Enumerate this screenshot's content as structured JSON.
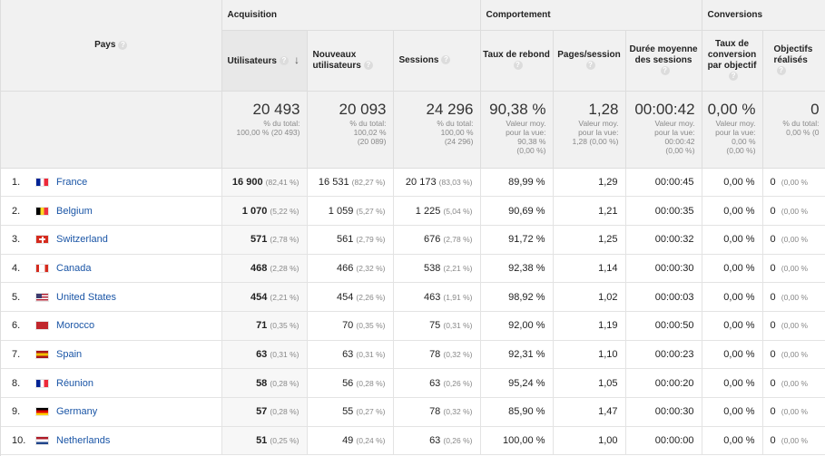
{
  "header": {
    "country_label": "Pays",
    "groups": {
      "acquisition": "Acquisition",
      "behavior": "Comportement",
      "conversions": "Conversions"
    },
    "columns": {
      "users": "Utilisateurs",
      "new_users": "Nouveaux utilisateurs",
      "sessions": "Sessions",
      "bounce": "Taux de rebond",
      "pages": "Pages/session",
      "duration": "Durée moyenne des sessions",
      "conv_rate": "Taux de conversion par objectif",
      "goals": "Objectifs réalisés"
    }
  },
  "totals": {
    "users": {
      "value": "20 493",
      "l1": "% du total:",
      "l2": "100,00 % (20 493)",
      "l3": ""
    },
    "new_users": {
      "value": "20 093",
      "l1": "% du total:",
      "l2": "100,02 %",
      "l3": "(20 089)"
    },
    "sessions": {
      "value": "24 296",
      "l1": "% du total:",
      "l2": "100,00 %",
      "l3": "(24 296)"
    },
    "bounce": {
      "value": "90,38 %",
      "l1": "Valeur moy.",
      "l2": "pour la vue:",
      "l3": "90,38 %",
      "l4": "(0,00 %)"
    },
    "pages": {
      "value": "1,28",
      "l1": "Valeur moy.",
      "l2": "pour la vue:",
      "l3": "1,28 (0,00 %)"
    },
    "duration": {
      "value": "00:00:42",
      "l1": "Valeur moy.",
      "l2": "pour la vue:",
      "l3": "00:00:42",
      "l4": "(0,00 %)"
    },
    "conv_rate": {
      "value": "0,00 %",
      "l1": "Valeur moy.",
      "l2": "pour la vue:",
      "l3": "0,00 %",
      "l4": "(0,00 %)"
    },
    "goals": {
      "value": "0",
      "l1": "% du total:",
      "l2": "0,00 % (0"
    }
  },
  "rows": [
    {
      "rank": "1.",
      "flag": "france-flag",
      "country": "France",
      "users": "16 900",
      "users_pct": "(82,41 %)",
      "new_users": "16 531",
      "new_users_pct": "(82,27 %)",
      "sessions": "20 173",
      "sessions_pct": "(83,03 %)",
      "bounce": "89,99 %",
      "pages": "1,29",
      "duration": "00:00:45",
      "conv": "0,00 %",
      "goals": "0",
      "goals_pct": "(0,00 %"
    },
    {
      "rank": "2.",
      "flag": "belgium-flag",
      "country": "Belgium",
      "users": "1 070",
      "users_pct": "(5,22 %)",
      "new_users": "1 059",
      "new_users_pct": "(5,27 %)",
      "sessions": "1 225",
      "sessions_pct": "(5,04 %)",
      "bounce": "90,69 %",
      "pages": "1,21",
      "duration": "00:00:35",
      "conv": "0,00 %",
      "goals": "0",
      "goals_pct": "(0,00 %"
    },
    {
      "rank": "3.",
      "flag": "switzerland-flag",
      "country": "Switzerland",
      "users": "571",
      "users_pct": "(2,78 %)",
      "new_users": "561",
      "new_users_pct": "(2,79 %)",
      "sessions": "676",
      "sessions_pct": "(2,78 %)",
      "bounce": "91,72 %",
      "pages": "1,25",
      "duration": "00:00:32",
      "conv": "0,00 %",
      "goals": "0",
      "goals_pct": "(0,00 %"
    },
    {
      "rank": "4.",
      "flag": "canada-flag",
      "country": "Canada",
      "users": "468",
      "users_pct": "(2,28 %)",
      "new_users": "466",
      "new_users_pct": "(2,32 %)",
      "sessions": "538",
      "sessions_pct": "(2,21 %)",
      "bounce": "92,38 %",
      "pages": "1,14",
      "duration": "00:00:30",
      "conv": "0,00 %",
      "goals": "0",
      "goals_pct": "(0,00 %"
    },
    {
      "rank": "5.",
      "flag": "united-states-flag",
      "country": "United States",
      "users": "454",
      "users_pct": "(2,21 %)",
      "new_users": "454",
      "new_users_pct": "(2,26 %)",
      "sessions": "463",
      "sessions_pct": "(1,91 %)",
      "bounce": "98,92 %",
      "pages": "1,02",
      "duration": "00:00:03",
      "conv": "0,00 %",
      "goals": "0",
      "goals_pct": "(0,00 %"
    },
    {
      "rank": "6.",
      "flag": "morocco-flag",
      "country": "Morocco",
      "users": "71",
      "users_pct": "(0,35 %)",
      "new_users": "70",
      "new_users_pct": "(0,35 %)",
      "sessions": "75",
      "sessions_pct": "(0,31 %)",
      "bounce": "92,00 %",
      "pages": "1,19",
      "duration": "00:00:50",
      "conv": "0,00 %",
      "goals": "0",
      "goals_pct": "(0,00 %"
    },
    {
      "rank": "7.",
      "flag": "spain-flag",
      "country": "Spain",
      "users": "63",
      "users_pct": "(0,31 %)",
      "new_users": "63",
      "new_users_pct": "(0,31 %)",
      "sessions": "78",
      "sessions_pct": "(0,32 %)",
      "bounce": "92,31 %",
      "pages": "1,10",
      "duration": "00:00:23",
      "conv": "0,00 %",
      "goals": "0",
      "goals_pct": "(0,00 %"
    },
    {
      "rank": "8.",
      "flag": "reunion-flag",
      "country": "Réunion",
      "users": "58",
      "users_pct": "(0,28 %)",
      "new_users": "56",
      "new_users_pct": "(0,28 %)",
      "sessions": "63",
      "sessions_pct": "(0,26 %)",
      "bounce": "95,24 %",
      "pages": "1,05",
      "duration": "00:00:20",
      "conv": "0,00 %",
      "goals": "0",
      "goals_pct": "(0,00 %"
    },
    {
      "rank": "9.",
      "flag": "germany-flag",
      "country": "Germany",
      "users": "57",
      "users_pct": "(0,28 %)",
      "new_users": "55",
      "new_users_pct": "(0,27 %)",
      "sessions": "78",
      "sessions_pct": "(0,32 %)",
      "bounce": "85,90 %",
      "pages": "1,47",
      "duration": "00:00:30",
      "conv": "0,00 %",
      "goals": "0",
      "goals_pct": "(0,00 %"
    },
    {
      "rank": "10.",
      "flag": "netherlands-flag",
      "country": "Netherlands",
      "users": "51",
      "users_pct": "(0,25 %)",
      "new_users": "49",
      "new_users_pct": "(0,24 %)",
      "sessions": "63",
      "sessions_pct": "(0,26 %)",
      "bounce": "100,00 %",
      "pages": "1,00",
      "duration": "00:00:00",
      "conv": "0,00 %",
      "goals": "0",
      "goals_pct": "(0,00 %"
    }
  ],
  "flags": {
    "france-flag": {
      "type": "v",
      "colors": [
        "#002395",
        "#ffffff",
        "#ed2939"
      ]
    },
    "belgium-flag": {
      "type": "v",
      "colors": [
        "#000000",
        "#fdda24",
        "#ef3340"
      ]
    },
    "switzerland-flag": {
      "type": "cross",
      "colors": [
        "#d52b1e",
        "#ffffff"
      ]
    },
    "canada-flag": {
      "type": "canada",
      "colors": [
        "#d52b1e",
        "#ffffff"
      ]
    },
    "united-states-flag": {
      "type": "us",
      "colors": [
        "#b22234",
        "#ffffff",
        "#3c3b6e"
      ]
    },
    "morocco-flag": {
      "type": "solid",
      "colors": [
        "#c1272d"
      ]
    },
    "spain-flag": {
      "type": "h3",
      "colors": [
        "#aa151b",
        "#f1bf00",
        "#aa151b"
      ]
    },
    "reunion-flag": {
      "type": "v",
      "colors": [
        "#002395",
        "#ffffff",
        "#ed2939"
      ]
    },
    "germany-flag": {
      "type": "h3",
      "colors": [
        "#000000",
        "#dd0000",
        "#ffce00"
      ]
    },
    "netherlands-flag": {
      "type": "h3",
      "colors": [
        "#ae1c28",
        "#ffffff",
        "#21468b"
      ]
    }
  }
}
